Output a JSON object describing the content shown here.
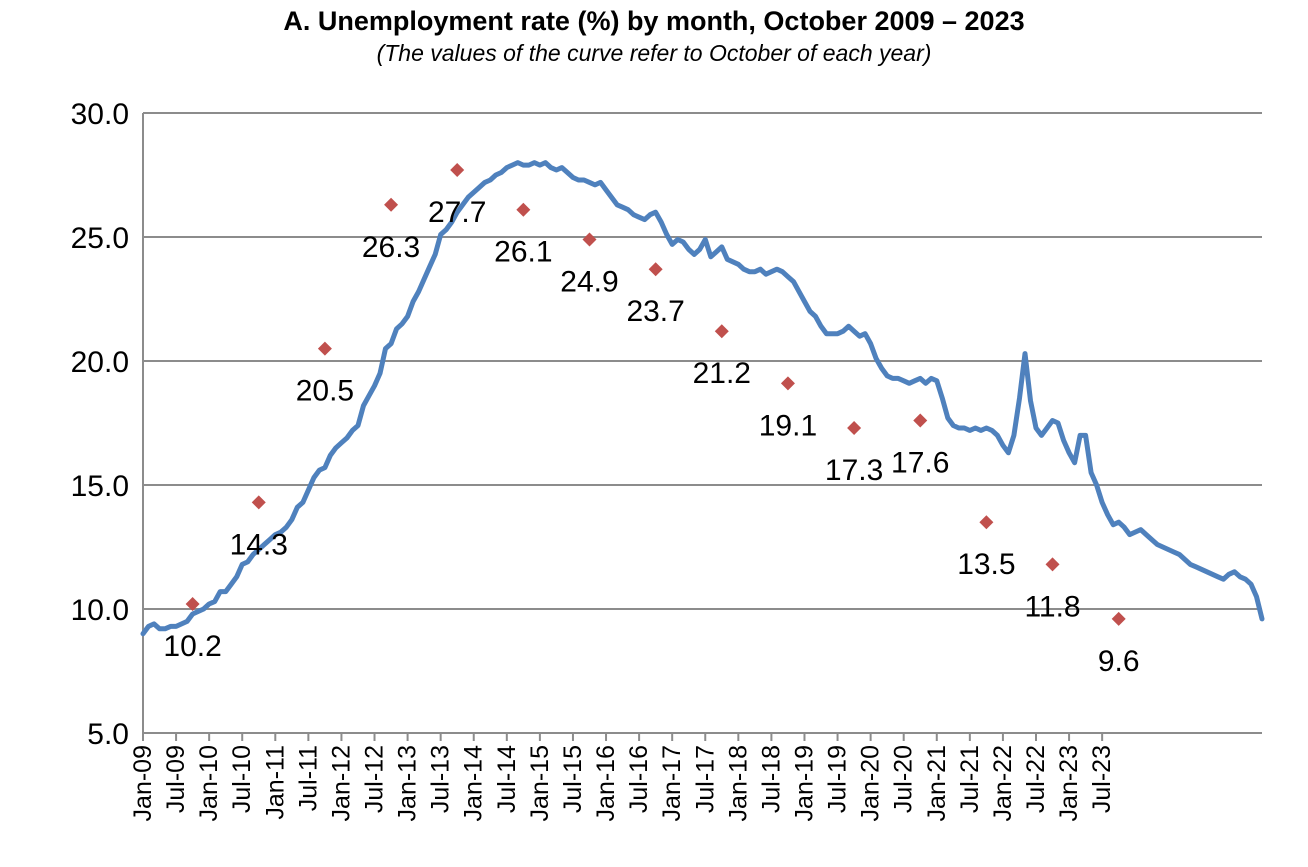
{
  "chart_data": {
    "type": "line",
    "title": "A. Unemployment rate (%) by month, October  2009 – 2023",
    "subtitle": "(The values of the curve refer to October of each year)",
    "xlabel": "",
    "ylabel": "",
    "ylim": [
      5,
      30
    ],
    "yticks": [
      "5.0",
      "10.0",
      "15.0",
      "20.0",
      "25.0",
      "30.0"
    ],
    "xticks": [
      "Jan-09",
      "Jul-09",
      "Jan-10",
      "Jul-10",
      "Jan-11",
      "Jul-11",
      "Jan-12",
      "Jul-12",
      "Jan-13",
      "Jul-13",
      "Jan-14",
      "Jul-14",
      "Jan-15",
      "Jul-15",
      "Jan-16",
      "Jul-16",
      "Jan-17",
      "Jul-17",
      "Jan-18",
      "Jul-18",
      "Jan-19",
      "Jul-19",
      "Jan-20",
      "Jul-20",
      "Jan-21",
      "Jul-21",
      "Jan-22",
      "Jul-22",
      "Jan-23",
      "Jul-23"
    ],
    "grid": "horizontal",
    "legend": "none",
    "line_color": "#4F81BD",
    "marker_color": "#C0504D",
    "monthly_series": {
      "start": "Jan-09",
      "end": "Oct-23",
      "values": [
        9.0,
        9.3,
        9.4,
        9.2,
        9.2,
        9.3,
        9.3,
        9.4,
        9.5,
        9.8,
        9.9,
        10.0,
        10.2,
        10.3,
        10.7,
        10.7,
        11.0,
        11.3,
        11.8,
        11.9,
        12.2,
        12.4,
        12.6,
        12.8,
        13.0,
        13.1,
        13.3,
        13.6,
        14.1,
        14.3,
        14.8,
        15.3,
        15.6,
        15.7,
        16.2,
        16.5,
        16.7,
        16.9,
        17.2,
        17.4,
        18.2,
        18.6,
        19.0,
        19.5,
        20.5,
        20.7,
        21.3,
        21.5,
        21.8,
        22.4,
        22.8,
        23.3,
        23.8,
        24.3,
        25.1,
        25.3,
        25.6,
        26.0,
        26.3,
        26.6,
        26.8,
        27.0,
        27.2,
        27.3,
        27.5,
        27.6,
        27.8,
        27.9,
        28.0,
        27.9,
        27.9,
        28.0,
        27.9,
        28.0,
        27.8,
        27.7,
        27.8,
        27.6,
        27.4,
        27.3,
        27.3,
        27.2,
        27.1,
        27.2,
        26.9,
        26.6,
        26.3,
        26.2,
        26.1,
        25.9,
        25.8,
        25.7,
        25.9,
        26.0,
        25.6,
        25.1,
        24.7,
        24.9,
        24.8,
        24.5,
        24.3,
        24.5,
        24.9,
        24.2,
        24.4,
        24.6,
        24.1,
        24.0,
        23.9,
        23.7,
        23.6,
        23.6,
        23.7,
        23.5,
        23.6,
        23.7,
        23.6,
        23.4,
        23.2,
        22.8,
        22.4,
        22.0,
        21.8,
        21.4,
        21.1,
        21.1,
        21.1,
        21.2,
        21.4,
        21.2,
        21.0,
        21.1,
        20.7,
        20.1,
        19.7,
        19.4,
        19.3,
        19.3,
        19.2,
        19.1,
        19.2,
        19.3,
        19.1,
        19.3,
        19.2,
        18.5,
        17.7,
        17.4,
        17.3,
        17.3,
        17.2,
        17.3,
        17.2,
        17.3,
        17.2,
        17.0,
        16.6,
        16.3,
        17.0,
        18.5,
        20.3,
        18.4,
        17.3,
        17.0,
        17.3,
        17.6,
        17.5,
        16.8,
        16.3,
        15.9,
        17.0,
        17.0,
        15.5,
        15.0,
        14.3,
        13.8,
        13.4,
        13.5,
        13.3,
        13.0,
        13.1,
        13.2,
        13.0,
        12.8,
        12.6,
        12.5,
        12.4,
        12.3,
        12.2,
        12.0,
        11.8,
        11.7,
        11.6,
        11.5,
        11.4,
        11.3,
        11.2,
        11.4,
        11.5,
        11.3,
        11.2,
        11.0,
        10.5,
        9.6
      ]
    },
    "october_markers": [
      {
        "x": "Oct-09",
        "y": 10.2,
        "label": "10.2"
      },
      {
        "x": "Oct-10",
        "y": 14.3,
        "label": "14.3"
      },
      {
        "x": "Oct-11",
        "y": 20.5,
        "label": "20.5"
      },
      {
        "x": "Oct-12",
        "y": 26.3,
        "label": "26.3"
      },
      {
        "x": "Oct-13",
        "y": 27.7,
        "label": "27.7"
      },
      {
        "x": "Oct-14",
        "y": 26.1,
        "label": "26.1"
      },
      {
        "x": "Oct-15",
        "y": 24.9,
        "label": "24.9"
      },
      {
        "x": "Oct-16",
        "y": 23.7,
        "label": "23.7"
      },
      {
        "x": "Oct-17",
        "y": 21.2,
        "label": "21.2"
      },
      {
        "x": "Oct-18",
        "y": 19.1,
        "label": "19.1"
      },
      {
        "x": "Oct-19",
        "y": 17.3,
        "label": "17.3"
      },
      {
        "x": "Oct-20",
        "y": 17.6,
        "label": "17.6"
      },
      {
        "x": "Oct-21",
        "y": 13.5,
        "label": "13.5"
      },
      {
        "x": "Oct-22",
        "y": 11.8,
        "label": "11.8"
      },
      {
        "x": "Oct-23",
        "y": 9.6,
        "label": "9.6"
      }
    ]
  }
}
